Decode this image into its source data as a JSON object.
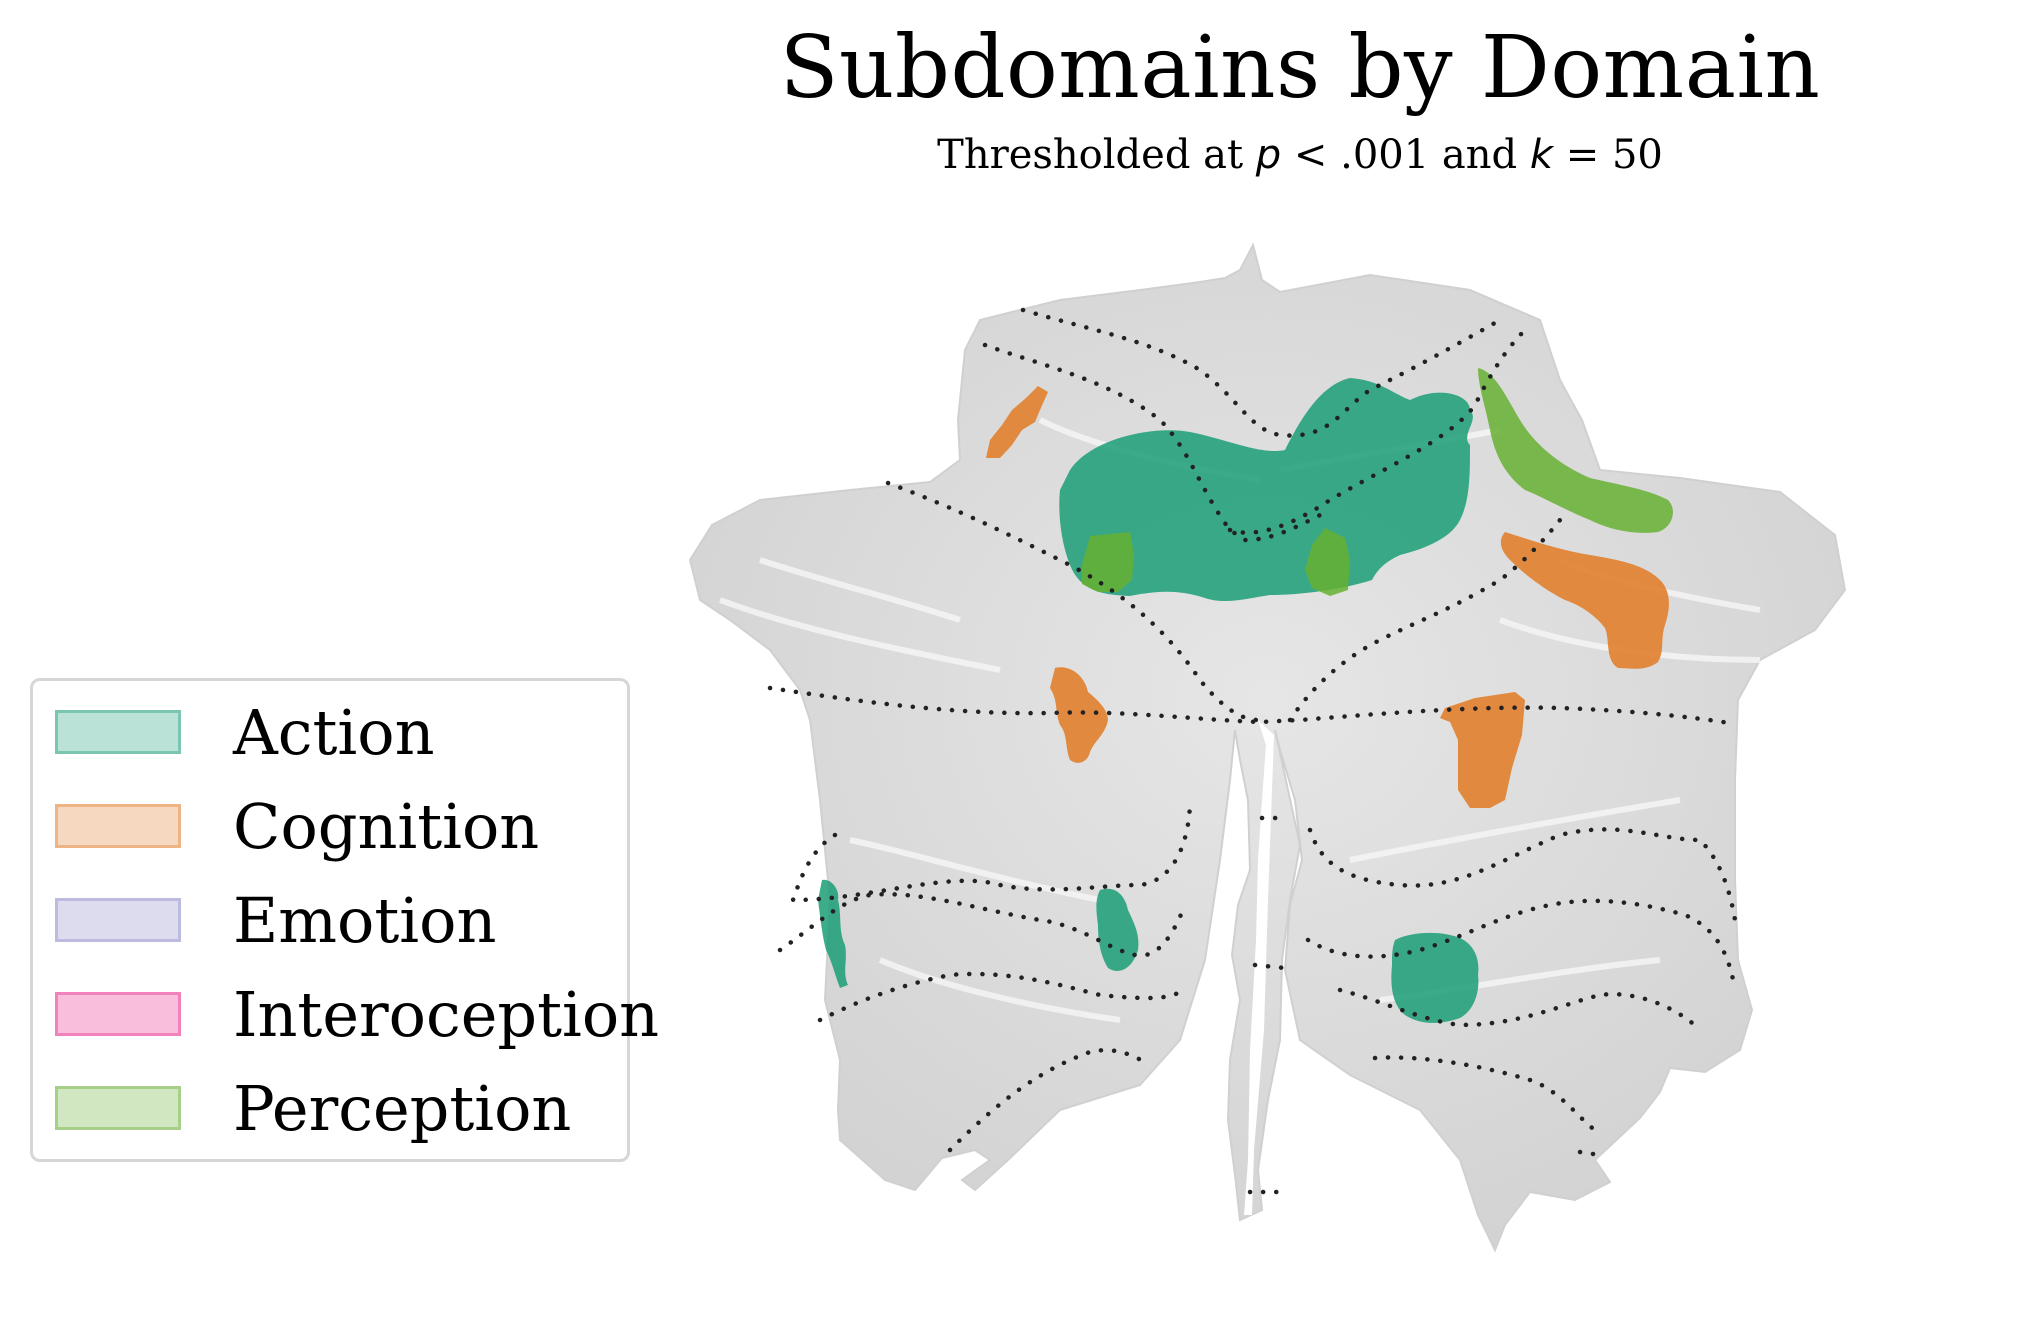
{
  "title": "Subdomains by Domain",
  "subtitle": {
    "prefix": "Thresholded at ",
    "p_symbol": "p",
    "p_condition": " < .001 and ",
    "k_symbol": "k",
    "k_condition": " = 50"
  },
  "legend": {
    "items": [
      {
        "label": "Action",
        "fill": "#1b9e77"
      },
      {
        "label": "Cognition",
        "fill": "#e07f2e"
      },
      {
        "label": "Emotion",
        "fill": "#8f89c7"
      },
      {
        "label": "Interoception",
        "fill": "#e7298a"
      },
      {
        "label": "Perception",
        "fill": "#66b032"
      }
    ]
  },
  "colors": {
    "background_surface": "#dcdcdc",
    "boundary_lines": "#222222"
  }
}
